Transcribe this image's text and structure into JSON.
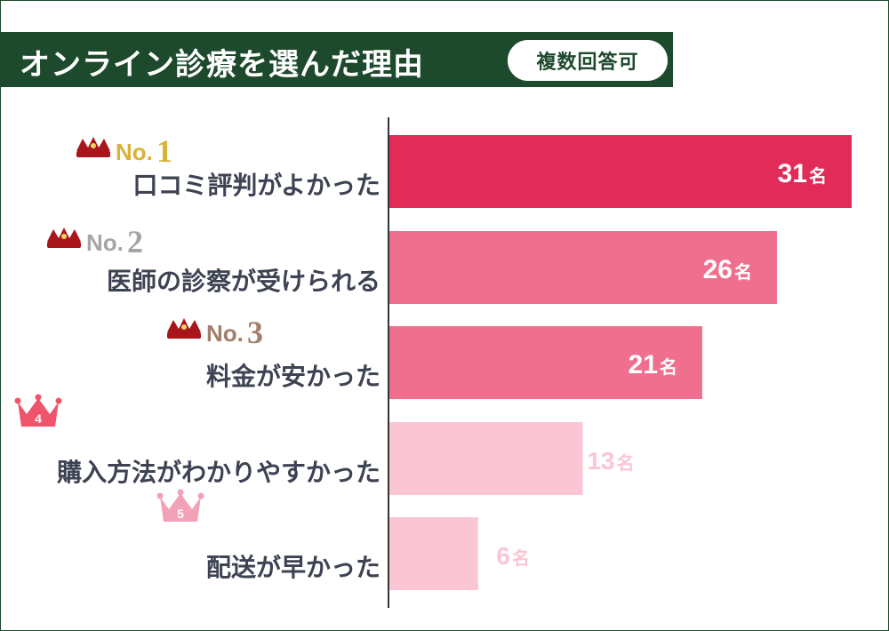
{
  "header": {
    "title": "オンライン診療を選んだ理由",
    "badge": "複数回答可"
  },
  "colors": {
    "header_bg": "#1d4a2c",
    "bar_top": "#e32b59",
    "bar_mid": "#f06f8f",
    "bar_low": "#fbc6d4",
    "label_text": "#3d4352",
    "rank1": "#d9b23a",
    "rank2": "#a5a5a5",
    "rank3": "#a37e6b",
    "rank4": "#f0546a",
    "rank5": "#f2a2b6",
    "crown": "#a8151b"
  },
  "chart_data": {
    "type": "bar",
    "orientation": "horizontal",
    "categories": [
      "口コミ評判がよかった",
      "医師の診察が受けられる",
      "料金が安かった",
      "購入方法がわかりやすかった",
      "配送が早かった"
    ],
    "values": [
      31,
      26,
      21,
      13,
      6
    ],
    "value_labels": [
      "31",
      "26",
      "21",
      "13",
      "6"
    ],
    "unit": "名",
    "ranks": [
      "No.",
      "No.",
      "No.",
      "4",
      "5"
    ],
    "rank_numbers": [
      "1",
      "2",
      "3"
    ],
    "xlim": [
      0,
      31
    ],
    "grid": false,
    "legend": "none"
  }
}
